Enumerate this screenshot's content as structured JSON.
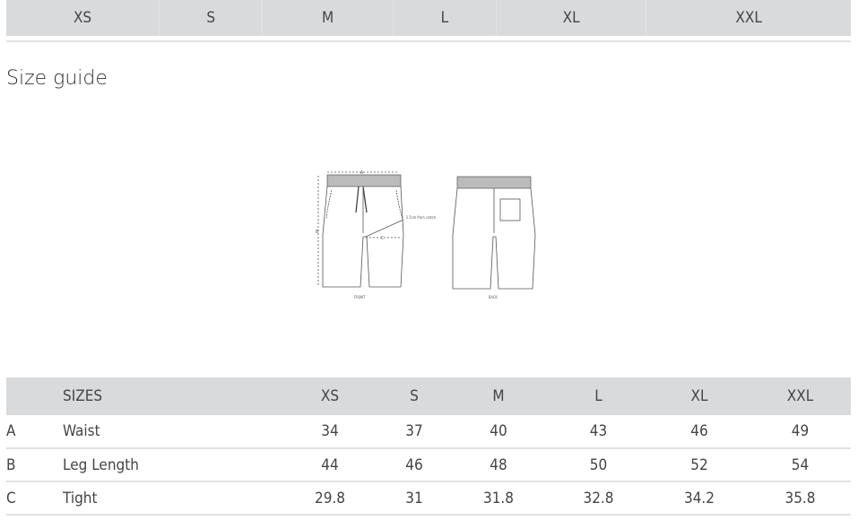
{
  "size_tabs": [
    "XS",
    "S",
    "M",
    "L",
    "XL",
    "XXL"
  ],
  "title": "Size guide",
  "diagram": {
    "label_a": "A",
    "label_b": "B",
    "label_c": "C",
    "note": "2.5cm from crotch",
    "front": "FRONT",
    "back": "BACK"
  },
  "table": {
    "header_label": "SIZES",
    "sizes": [
      "XS",
      "S",
      "M",
      "L",
      "XL",
      "XXL"
    ],
    "rows": [
      {
        "key": "A",
        "name": "Waist",
        "values": [
          "34",
          "37",
          "40",
          "43",
          "46",
          "49"
        ]
      },
      {
        "key": "B",
        "name": "Leg Length",
        "values": [
          "44",
          "46",
          "48",
          "50",
          "52",
          "54"
        ]
      },
      {
        "key": "C",
        "name": "Tight",
        "values": [
          "29.8",
          "31",
          "31.8",
          "32.8",
          "34.2",
          "35.8"
        ]
      }
    ]
  },
  "colors": {
    "bar": "#d9dadc",
    "divider": "#e1e1e1",
    "text": "#444444"
  }
}
